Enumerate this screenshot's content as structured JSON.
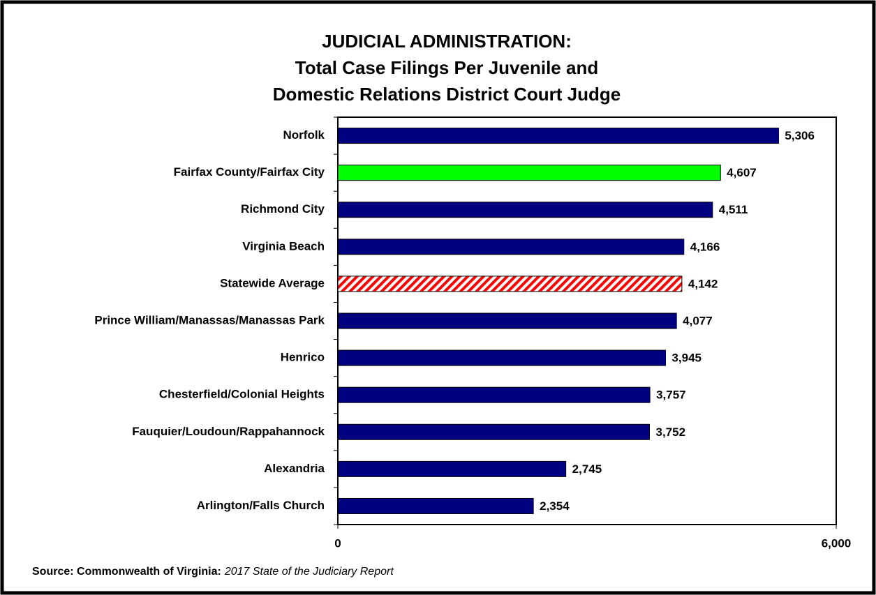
{
  "chart_data": {
    "type": "hbar",
    "title": [
      "JUDICIAL ADMINISTRATION:",
      "Total Case Filings Per Juvenile and",
      "Domestic Relations District Court Judge"
    ],
    "categories": [
      "Norfolk",
      "Fairfax County/Fairfax City",
      "Richmond City",
      "Virginia Beach",
      "Statewide Average",
      "Prince William/Manassas/Manassas Park",
      "Henrico",
      "Chesterfield/Colonial Heights",
      "Fauquier/Loudoun/Rappahannock",
      "Alexandria",
      "Arlington/Falls Church"
    ],
    "values": [
      5306,
      4607,
      4511,
      4166,
      4142,
      4077,
      3945,
      3757,
      3752,
      2745,
      2354
    ],
    "value_labels": [
      "5,306",
      "4,607",
      "4,511",
      "4,166",
      "4,142",
      "4,077",
      "3,945",
      "3,757",
      "3,752",
      "2,745",
      "2,354"
    ],
    "colors": [
      "#000080",
      "#00ff00",
      "#000080",
      "#000080",
      "#ff0000",
      "#000080",
      "#000080",
      "#000080",
      "#000080",
      "#000080",
      "#000080"
    ],
    "patterns": [
      "solid",
      "solid",
      "solid",
      "solid",
      "hatch",
      "solid",
      "solid",
      "solid",
      "solid",
      "solid",
      "solid"
    ],
    "xlim": [
      0,
      6000
    ],
    "xticks": [
      0,
      {
        "value": 6000,
        "label": "6,000"
      }
    ],
    "source": "Source: Commonwealth of Virginia:",
    "source_title": "2017 State of the Judiciary Report"
  }
}
